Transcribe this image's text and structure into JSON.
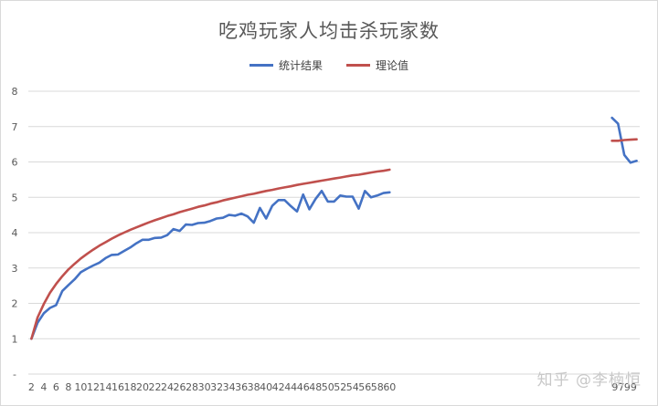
{
  "chart_data": {
    "type": "line",
    "title": "吃鸡玩家人均击杀玩家数",
    "ylim": [
      0,
      8
    ],
    "yticks": [
      {
        "value": 0,
        "label": "-"
      },
      {
        "value": 1,
        "label": "1"
      },
      {
        "value": 2,
        "label": "2"
      },
      {
        "value": 3,
        "label": "3"
      },
      {
        "value": 4,
        "label": "4"
      },
      {
        "value": 5,
        "label": "5"
      },
      {
        "value": 6,
        "label": "6"
      },
      {
        "value": 7,
        "label": "7"
      },
      {
        "value": 8,
        "label": "8"
      }
    ],
    "xtick_labels": [
      "2",
      "4",
      "6",
      "8",
      "10",
      "12",
      "14",
      "16",
      "18",
      "20",
      "22",
      "24",
      "26",
      "28",
      "30",
      "32",
      "34",
      "36",
      "38",
      "40",
      "42",
      "44",
      "46",
      "48",
      "50",
      "52",
      "54",
      "56",
      "58",
      "60",
      "97",
      "99"
    ],
    "grid": true,
    "legend_position": "top",
    "series": [
      {
        "name": "统计结果",
        "color": "#4472c4",
        "segments": [
          {
            "x": [
              2,
              3,
              4,
              5,
              6,
              7,
              8,
              9,
              10,
              11,
              12,
              13,
              14,
              15,
              16,
              17,
              18,
              19,
              20,
              21,
              22,
              23,
              24,
              25,
              26,
              27,
              28,
              29,
              30,
              31,
              32,
              33,
              34,
              35,
              36,
              37,
              38,
              39,
              40,
              41,
              42,
              43,
              44,
              45,
              46,
              47,
              48,
              49,
              50,
              51,
              52,
              53,
              54,
              55,
              56,
              57,
              58,
              59,
              60
            ],
            "values": [
              1.0,
              1.45,
              1.72,
              1.87,
              1.95,
              2.35,
              2.52,
              2.68,
              2.88,
              2.98,
              3.07,
              3.15,
              3.28,
              3.37,
              3.38,
              3.48,
              3.58,
              3.7,
              3.8,
              3.8,
              3.85,
              3.86,
              3.93,
              4.1,
              4.05,
              4.23,
              4.22,
              4.27,
              4.28,
              4.33,
              4.4,
              4.42,
              4.5,
              4.48,
              4.54,
              4.46,
              4.28,
              4.7,
              4.4,
              4.76,
              4.92,
              4.92,
              4.75,
              4.6,
              5.08,
              4.66,
              4.95,
              5.18,
              4.88,
              4.88,
              5.05,
              5.02,
              5.02,
              4.68,
              5.18,
              5.0,
              5.05,
              5.12,
              5.14
            ]
          },
          {
            "x": [
              96,
              97,
              98,
              99,
              100
            ],
            "values": [
              7.25,
              7.08,
              6.2,
              5.98,
              6.03
            ]
          }
        ]
      },
      {
        "name": "理论值",
        "color": "#c0504d",
        "segments": [
          {
            "x": [
              2,
              3,
              4,
              5,
              6,
              7,
              8,
              9,
              10,
              11,
              12,
              13,
              14,
              15,
              16,
              17,
              18,
              19,
              20,
              21,
              22,
              23,
              24,
              25,
              26,
              27,
              28,
              29,
              30,
              31,
              32,
              33,
              34,
              35,
              36,
              37,
              38,
              39,
              40,
              41,
              42,
              43,
              44,
              45,
              46,
              47,
              48,
              49,
              50,
              51,
              52,
              53,
              54,
              55,
              56,
              57,
              58,
              59,
              60
            ],
            "values": [
              1.0,
              1.6,
              1.98,
              2.3,
              2.55,
              2.77,
              2.96,
              3.12,
              3.27,
              3.4,
              3.52,
              3.63,
              3.73,
              3.83,
              3.92,
              4.0,
              4.08,
              4.15,
              4.22,
              4.29,
              4.35,
              4.41,
              4.47,
              4.52,
              4.58,
              4.63,
              4.68,
              4.73,
              4.77,
              4.82,
              4.86,
              4.91,
              4.95,
              4.99,
              5.03,
              5.07,
              5.1,
              5.14,
              5.18,
              5.21,
              5.25,
              5.28,
              5.31,
              5.35,
              5.38,
              5.41,
              5.44,
              5.47,
              5.5,
              5.53,
              5.56,
              5.59,
              5.62,
              5.64,
              5.67,
              5.7,
              5.73,
              5.75,
              5.78
            ]
          },
          {
            "x": [
              96,
              97,
              98,
              99,
              100
            ],
            "values": [
              6.6,
              6.6,
              6.62,
              6.63,
              6.64
            ]
          }
        ]
      }
    ]
  },
  "watermark": "知乎 @李楠恒"
}
